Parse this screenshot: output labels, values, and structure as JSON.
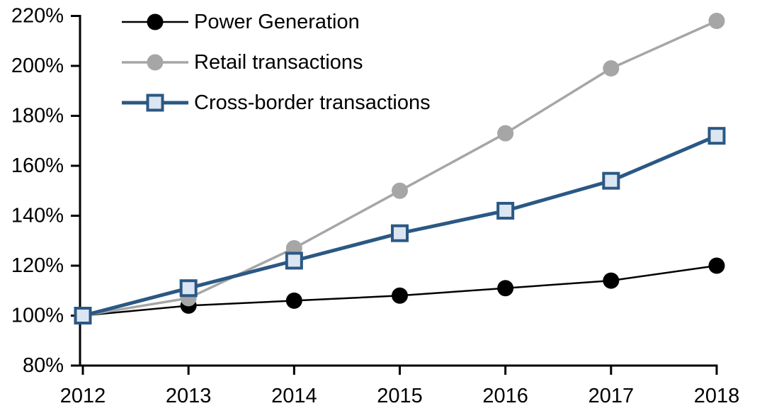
{
  "chart_data": {
    "type": "line",
    "title": "",
    "xlabel": "",
    "ylabel": "",
    "x": [
      2012,
      2013,
      2014,
      2015,
      2016,
      2017,
      2018
    ],
    "xtick_labels": [
      "2012",
      "2013",
      "2014",
      "2015",
      "2016",
      "2017",
      "2018"
    ],
    "ylim": [
      80,
      220
    ],
    "ytick_step": 20,
    "ytick_labels": [
      "80%",
      "100%",
      "120%",
      "140%",
      "160%",
      "180%",
      "200%",
      "220%"
    ],
    "grid": false,
    "legend_position": "top-left-inside",
    "series": [
      {
        "name": "Power Generation",
        "values": [
          100,
          104,
          106,
          108,
          111,
          114,
          120
        ],
        "color": "#000000",
        "marker": "circle",
        "marker_fill": "#000000",
        "marker_stroke": "#000000",
        "line_width": 2.5
      },
      {
        "name": "Retail transactions",
        "values": [
          100,
          107,
          127,
          150,
          173,
          199,
          218
        ],
        "color": "#A6A6A6",
        "marker": "circle",
        "marker_fill": "#A6A6A6",
        "marker_stroke": "#A6A6A6",
        "line_width": 3.5
      },
      {
        "name": "Cross-border transactions",
        "values": [
          100,
          111,
          122,
          133,
          142,
          154,
          172
        ],
        "color": "#2B5884",
        "marker": "square",
        "marker_fill": "#DCE6F2",
        "marker_stroke": "#2B5884",
        "line_width": 5
      }
    ],
    "axis_color": "#000000"
  }
}
